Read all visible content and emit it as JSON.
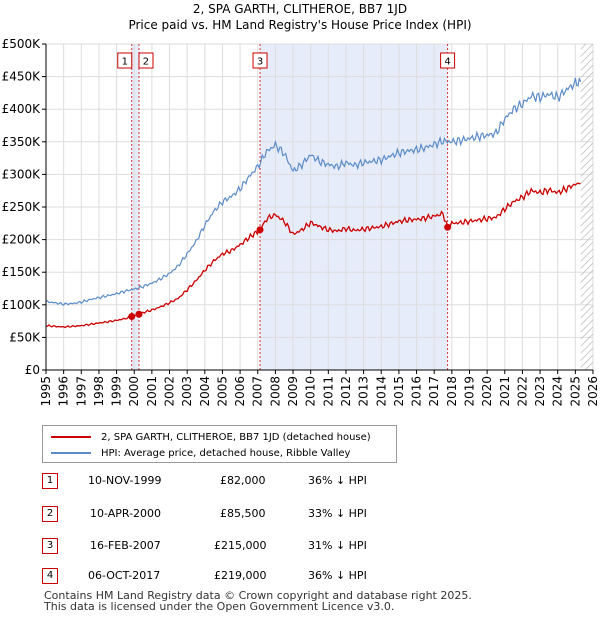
{
  "title_line1": "2, SPA GARTH, CLITHEROE, BB7 1JD",
  "title_line2": "Price paid vs. HM Land Registry's House Price Index (HPI)",
  "chart_data": {
    "type": "line",
    "title": "2, SPA GARTH, CLITHEROE, BB7 1JD — Price paid vs. HM Land Registry's House Price Index (HPI)",
    "xlim": [
      1995,
      2026
    ],
    "ylim": [
      0,
      500000
    ],
    "x_ticks": [
      "1995",
      "1996",
      "1997",
      "1998",
      "1999",
      "2000",
      "2001",
      "2002",
      "2003",
      "2004",
      "2005",
      "2006",
      "2007",
      "2008",
      "2009",
      "2010",
      "2011",
      "2012",
      "2013",
      "2014",
      "2015",
      "2016",
      "2017",
      "2018",
      "2019",
      "2020",
      "2021",
      "2022",
      "2023",
      "2024",
      "2025",
      "2026"
    ],
    "y_ticks": [
      {
        "value": 0,
        "label": "£0"
      },
      {
        "value": 50000,
        "label": "£50K"
      },
      {
        "value": 100000,
        "label": "£100K"
      },
      {
        "value": 150000,
        "label": "£150K"
      },
      {
        "value": 200000,
        "label": "£200K"
      },
      {
        "value": 250000,
        "label": "£250K"
      },
      {
        "value": 300000,
        "label": "£300K"
      },
      {
        "value": 350000,
        "label": "£350K"
      },
      {
        "value": 400000,
        "label": "£400K"
      },
      {
        "value": 450000,
        "label": "£450K"
      },
      {
        "value": 500000,
        "label": "£500K"
      }
    ],
    "grid": true,
    "shaded_periods": [
      [
        1999.86,
        2000.27
      ],
      [
        2007.13,
        2017.76
      ]
    ],
    "hatched_from": 2025.3,
    "series": [
      {
        "name": "HPI: Average price, detached house, Ribble Valley",
        "color": "#5b8cc8",
        "x": [
          1995.0,
          1995.5,
          1996.0,
          1996.5,
          1997.0,
          1997.5,
          1998.0,
          1998.5,
          1999.0,
          1999.5,
          2000.0,
          2000.5,
          2001.0,
          2001.5,
          2002.0,
          2002.5,
          2003.0,
          2003.5,
          2004.0,
          2004.5,
          2005.0,
          2005.5,
          2006.0,
          2006.5,
          2007.0,
          2007.5,
          2008.0,
          2008.5,
          2009.0,
          2009.5,
          2010.0,
          2010.5,
          2011.0,
          2011.5,
          2012.0,
          2012.5,
          2013.0,
          2013.5,
          2014.0,
          2014.5,
          2015.0,
          2015.5,
          2016.0,
          2016.5,
          2017.0,
          2017.5,
          2018.0,
          2018.5,
          2019.0,
          2019.5,
          2020.0,
          2020.5,
          2021.0,
          2021.5,
          2022.0,
          2022.5,
          2023.0,
          2023.5,
          2024.0,
          2024.5,
          2025.0,
          2025.3
        ],
        "values": [
          105000,
          103000,
          101000,
          102000,
          104000,
          108000,
          111000,
          114000,
          117000,
          121000,
          124000,
          128000,
          133000,
          140000,
          148000,
          160000,
          178000,
          197000,
          222000,
          243000,
          258000,
          266000,
          278000,
          296000,
          312000,
          335000,
          345000,
          332000,
          305000,
          315000,
          330000,
          320000,
          315000,
          312000,
          318000,
          314000,
          318000,
          320000,
          322000,
          328000,
          333000,
          336000,
          338000,
          341000,
          346000,
          351000,
          350000,
          352000,
          355000,
          358000,
          360000,
          363000,
          385000,
          400000,
          408000,
          420000,
          418000,
          423000,
          418000,
          430000,
          440000,
          442000
        ]
      },
      {
        "name": "2, SPA GARTH, CLITHEROE, BB7 1JD (detached house)",
        "color": "#cc0000",
        "x": [
          1995.0,
          1995.5,
          1996.0,
          1996.5,
          1997.0,
          1997.5,
          1998.0,
          1998.5,
          1999.0,
          1999.5,
          1999.86,
          2000.27,
          2000.5,
          2001.0,
          2001.5,
          2002.0,
          2002.5,
          2003.0,
          2003.5,
          2004.0,
          2004.5,
          2005.0,
          2005.5,
          2006.0,
          2006.5,
          2007.13,
          2007.5,
          2008.0,
          2008.5,
          2009.0,
          2009.5,
          2010.0,
          2010.5,
          2011.0,
          2011.5,
          2012.0,
          2012.5,
          2013.0,
          2013.5,
          2014.0,
          2014.5,
          2015.0,
          2015.5,
          2016.0,
          2016.5,
          2017.0,
          2017.5,
          2017.76,
          2018.0,
          2018.5,
          2019.0,
          2019.5,
          2020.0,
          2020.5,
          2021.0,
          2021.5,
          2022.0,
          2022.5,
          2023.0,
          2023.5,
          2024.0,
          2024.5,
          2025.0,
          2025.3
        ],
        "values": [
          68000,
          67000,
          66000,
          67000,
          68000,
          70000,
          72000,
          74000,
          76000,
          79000,
          82000,
          85500,
          88000,
          92000,
          97000,
          103000,
          110000,
          123000,
          137000,
          153000,
          167000,
          178000,
          183000,
          192000,
          203000,
          215000,
          232000,
          238000,
          228000,
          208000,
          215000,
          226000,
          220000,
          215000,
          213000,
          217000,
          214000,
          216000,
          218000,
          220000,
          224000,
          228000,
          230000,
          231000,
          233000,
          236000,
          240000,
          219000,
          225000,
          226000,
          228000,
          230000,
          232000,
          234000,
          247000,
          258000,
          265000,
          275000,
          272000,
          276000,
          272000,
          278000,
          285000,
          286000
        ]
      }
    ],
    "sales": [
      {
        "n": "1",
        "x": 1999.86,
        "price": 82000
      },
      {
        "n": "2",
        "x": 2000.27,
        "price": 85500
      },
      {
        "n": "3",
        "x": 2007.13,
        "price": 215000
      },
      {
        "n": "4",
        "x": 2017.76,
        "price": 219000
      }
    ]
  },
  "legend": {
    "red_label": "2, SPA GARTH, CLITHEROE, BB7 1JD (detached house)",
    "blue_label": "HPI: Average price, detached house, Ribble Valley"
  },
  "sales_table": [
    {
      "n": "1",
      "date": "10-NOV-1999",
      "price": "£82,000",
      "hpi": "36% ↓ HPI"
    },
    {
      "n": "2",
      "date": "10-APR-2000",
      "price": "£85,500",
      "hpi": "33% ↓ HPI"
    },
    {
      "n": "3",
      "date": "16-FEB-2007",
      "price": "£215,000",
      "hpi": "31% ↓ HPI"
    },
    {
      "n": "4",
      "date": "06-OCT-2017",
      "price": "£219,000",
      "hpi": "36% ↓ HPI"
    }
  ],
  "footer_line1": "Contains HM Land Registry data © Crown copyright and database right 2025.",
  "footer_line2": "This data is licensed under the Open Government Licence v3.0."
}
